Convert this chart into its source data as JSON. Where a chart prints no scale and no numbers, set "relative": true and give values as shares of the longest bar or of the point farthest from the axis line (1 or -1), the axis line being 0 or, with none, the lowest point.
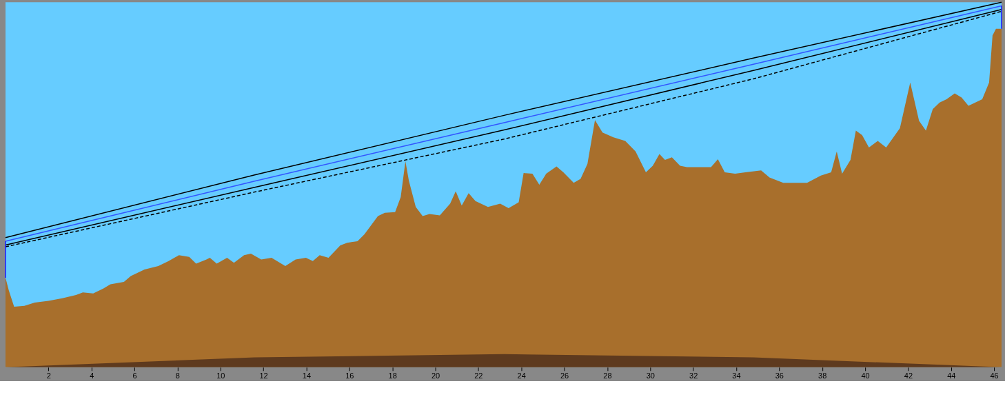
{
  "chart_data": {
    "type": "area",
    "relative": true,
    "xlim": [
      0,
      46.35
    ],
    "xticks": [
      2,
      4,
      6,
      8,
      10,
      12,
      14,
      16,
      18,
      20,
      22,
      24,
      26,
      28,
      30,
      32,
      34,
      36,
      38,
      40,
      42,
      44,
      46
    ],
    "series": [
      {
        "color": "#a86f2c",
        "x": [
          0,
          0.15,
          0.4,
          0.88,
          1.36,
          2.0,
          2.64,
          3.28,
          3.6,
          4.08,
          4.56,
          4.88,
          5.51,
          5.83,
          6.15,
          6.47,
          7.11,
          7.59,
          8.07,
          8.55,
          8.87,
          9.35,
          9.51,
          9.83,
          10.31,
          10.63,
          11.1,
          11.42,
          11.9,
          12.38,
          13.02,
          13.5,
          13.98,
          14.3,
          14.62,
          15.03,
          15.58,
          15.9,
          16.38,
          16.7,
          17.33,
          17.65,
          18.13,
          18.39,
          18.61,
          18.77,
          19.09,
          19.41,
          19.73,
          20.21,
          20.69,
          20.95,
          21.23,
          21.55,
          21.87,
          22.45,
          23.02,
          23.41,
          23.88,
          24.11,
          24.52,
          24.84,
          25.16,
          25.64,
          25.96,
          26.44,
          26.76,
          27.08,
          27.43,
          27.78,
          28.29,
          28.84,
          29.32,
          29.8,
          30.12,
          30.43,
          30.69,
          31.01,
          31.39,
          31.71,
          32.83,
          33.15,
          33.47,
          33.95,
          34.43,
          35.16,
          35.55,
          36.19,
          37.3,
          37.94,
          38.42,
          38.68,
          38.93,
          39.32,
          39.57,
          39.86,
          40.18,
          40.59,
          40.98,
          41.62,
          42.1,
          42.51,
          42.83,
          43.15,
          43.47,
          43.79,
          44.17,
          44.49,
          44.81,
          45.45,
          45.77,
          45.93,
          46.09,
          46.35
        ],
        "values": [
          0.245,
          0.211,
          0.166,
          0.168,
          0.177,
          0.182,
          0.189,
          0.198,
          0.205,
          0.202,
          0.216,
          0.227,
          0.234,
          0.25,
          0.259,
          0.268,
          0.277,
          0.291,
          0.307,
          0.302,
          0.284,
          0.295,
          0.3,
          0.284,
          0.3,
          0.286,
          0.307,
          0.311,
          0.295,
          0.3,
          0.277,
          0.295,
          0.3,
          0.291,
          0.307,
          0.3,
          0.334,
          0.341,
          0.345,
          0.364,
          0.414,
          0.423,
          0.425,
          0.466,
          0.564,
          0.511,
          0.439,
          0.414,
          0.42,
          0.416,
          0.448,
          0.482,
          0.443,
          0.477,
          0.455,
          0.439,
          0.448,
          0.436,
          0.452,
          0.532,
          0.53,
          0.5,
          0.53,
          0.55,
          0.534,
          0.505,
          0.516,
          0.557,
          0.677,
          0.643,
          0.63,
          0.62,
          0.591,
          0.534,
          0.552,
          0.584,
          0.568,
          0.575,
          0.552,
          0.548,
          0.548,
          0.57,
          0.534,
          0.53,
          0.534,
          0.539,
          0.52,
          0.505,
          0.505,
          0.525,
          0.534,
          0.591,
          0.53,
          0.568,
          0.648,
          0.636,
          0.602,
          0.62,
          0.602,
          0.655,
          0.78,
          0.675,
          0.648,
          0.707,
          0.725,
          0.734,
          0.75,
          0.739,
          0.716,
          0.734,
          0.78,
          0.909,
          0.927,
          0.927
        ]
      },
      {
        "color": "#5e3a1e",
        "x": [
          0,
          11.6,
          23.2,
          34.8,
          46.35
        ],
        "values": [
          0,
          0.027,
          0.036,
          0.027,
          0
        ]
      },
      {
        "type": "line",
        "color": "#000000",
        "x": [
          0,
          11.6,
          23.2,
          34.8,
          46.35
        ],
        "values": [
          0.355,
          0.527,
          0.69,
          0.847,
          1.0
        ]
      },
      {
        "type": "line",
        "color": "#3355ff",
        "x": [
          0,
          11.6,
          23.2,
          34.8,
          46.35
        ],
        "values": [
          0.345,
          0.51,
          0.67,
          0.83,
          0.99
        ]
      },
      {
        "type": "line",
        "color": "#000000",
        "x": [
          0,
          11.6,
          23.2,
          34.8,
          46.35
        ],
        "values": [
          0.335,
          0.493,
          0.65,
          0.813,
          0.98
        ]
      },
      {
        "type": "line",
        "color": "#000000",
        "line_style": "dashed",
        "x": [
          0,
          11.6,
          23.2,
          34.8,
          46.35
        ],
        "values": [
          0.33,
          0.48,
          0.625,
          0.79,
          0.975
        ]
      },
      {
        "type": "line",
        "color": "#1a1aff",
        "x": [
          0,
          0
        ],
        "values": [
          0.245,
          0.345
        ]
      },
      {
        "type": "line",
        "color": "#1a1aff",
        "x": [
          46.35,
          46.35
        ],
        "values": [
          0.927,
          0.99
        ]
      }
    ]
  }
}
